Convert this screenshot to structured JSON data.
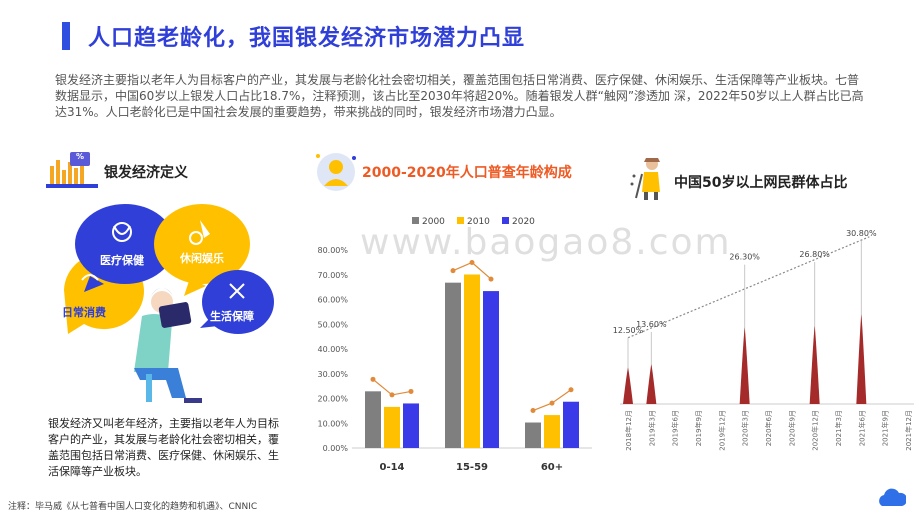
{
  "title": "人口趋老龄化，我国银发经济市场潜力凸显",
  "intro": "银发经济主要指以老年人为目标客户的产业，其发展与老龄化社会密切相关，覆盖范围包括日常消费、医疗保健、休闲娱乐、生活保障等产业板块。七普数据显示，中国60岁以上银发人口占比18.7%，注释预测，该占比至2030年将超20%。随着银发人群“触网”渗透加 深，2022年50岁以上人群占比已高达31%。人口老龄化已是中国社会发展的重要趋势，带来挑战的同时，银发经济市场潜力凸显。",
  "left": {
    "title": "银发经济定义",
    "bubbles": [
      "医疗保健",
      "休闲娱乐",
      "日常消费",
      "生活保障"
    ],
    "description": "银发经济又叫老年经济，主要指以老年人为目标客户的产业，其发展与老龄化社会密切相关，覆盖范围包括日常消费、医疗保健、休闲娱乐、生活保障等产业板块。",
    "icon_badge": "%"
  },
  "middle": {
    "title": "2000-2020年人口普查年龄构成"
  },
  "right": {
    "title": "中国50岁以上网民群体占比"
  },
  "footnote": "注释：毕马威《从七普看中国人口变化的趋势和机遇》、CNNIC",
  "watermark": "www.baogao8.com",
  "colors": {
    "accent": "#2f3fd8",
    "orange": "#ee5a24",
    "gray": "#7f7f7f",
    "yellow": "#ffc000",
    "blue": "#3a3ae8",
    "trend": "#e08a3a",
    "spike": "#b03030"
  },
  "chart_data": [
    {
      "type": "bar",
      "title": "2000-2020年人口普查年龄构成",
      "categories": [
        "0-14",
        "15-59",
        "60+"
      ],
      "series": [
        {
          "name": "2000",
          "color": "#7f7f7f",
          "values": [
            22.9,
            66.8,
            10.3
          ]
        },
        {
          "name": "2010",
          "color": "#ffc000",
          "values": [
            16.6,
            70.1,
            13.3
          ]
        },
        {
          "name": "2020",
          "color": "#3a3ae8",
          "values": [
            18.0,
            63.4,
            18.7
          ]
        }
      ],
      "ylim": [
        0,
        80
      ],
      "yticks": [
        "0.00%",
        "10.00%",
        "20.00%",
        "30.00%",
        "40.00%",
        "50.00%",
        "60.00%",
        "70.00%",
        "80.00%"
      ],
      "legend": "top",
      "grid": false
    },
    {
      "type": "line",
      "title": "中国50岁以上网民群体占比",
      "x": [
        "2018年12月",
        "2019年3月",
        "2019年6月",
        "2019年9月",
        "2019年12月",
        "2020年3月",
        "2020年6月",
        "2020年9月",
        "2020年12月",
        "2021年3月",
        "2021年6月",
        "2021年9月",
        "2021年12月"
      ],
      "points": [
        {
          "x": "2018年12月",
          "value": 12.5,
          "label": "12.50%"
        },
        {
          "x": "2019年3月",
          "value": 13.6,
          "label": "13.60%"
        },
        {
          "x": "2020年3月",
          "value": 26.3,
          "label": "26.30%"
        },
        {
          "x": "2020年12月",
          "value": 26.8,
          "label": "26.80%"
        },
        {
          "x": "2021年6月",
          "value": 30.8,
          "label": "30.80%"
        }
      ],
      "trendline": "dotted",
      "grid": false
    }
  ]
}
